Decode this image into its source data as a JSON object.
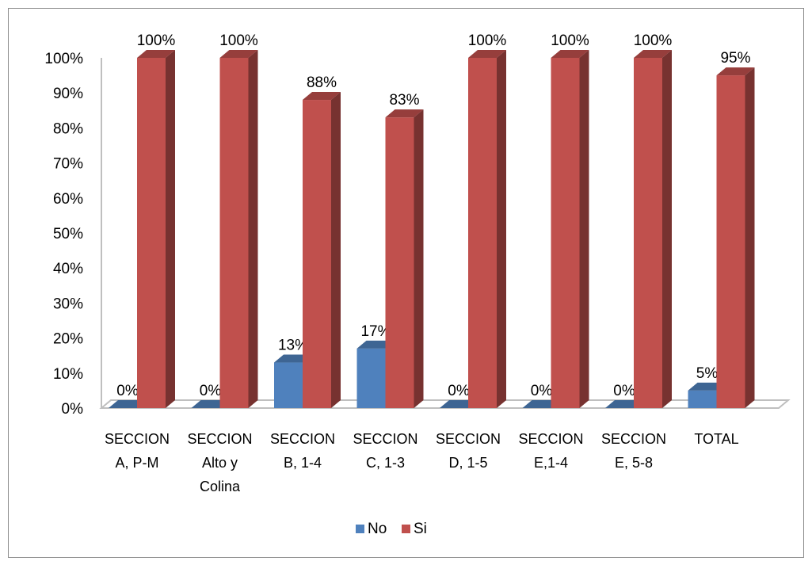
{
  "chart_data": {
    "type": "bar",
    "categories": [
      [
        "SECCION",
        "A, P-M"
      ],
      [
        "SECCION",
        "Alto y",
        "Colina"
      ],
      [
        "SECCION",
        "B, 1-4"
      ],
      [
        "SECCION",
        "C, 1-3"
      ],
      [
        "SECCION",
        "D, 1-5"
      ],
      [
        "SECCION",
        "E,1-4"
      ],
      [
        "SECCION",
        "E, 5-8"
      ],
      [
        "TOTAL"
      ]
    ],
    "series": [
      {
        "name": "No",
        "values": [
          0,
          0,
          13,
          17,
          0,
          0,
          0,
          5
        ],
        "labels": [
          "0%",
          "0%",
          "13%",
          "17%",
          "0%",
          "0%",
          "0%",
          "5%"
        ],
        "color": "#4f81bd"
      },
      {
        "name": "Si",
        "values": [
          100,
          100,
          88,
          83,
          100,
          100,
          100,
          95
        ],
        "labels": [
          "100%",
          "100%",
          "88%",
          "83%",
          "100%",
          "100%",
          "100%",
          "95%"
        ],
        "color": "#c0504d"
      }
    ],
    "yticks": [
      "0%",
      "10%",
      "20%",
      "30%",
      "40%",
      "50%",
      "60%",
      "70%",
      "80%",
      "90%",
      "100%"
    ],
    "ylim": [
      0,
      100
    ],
    "legend_position": "bottom",
    "style": "3d-clustered-column"
  }
}
